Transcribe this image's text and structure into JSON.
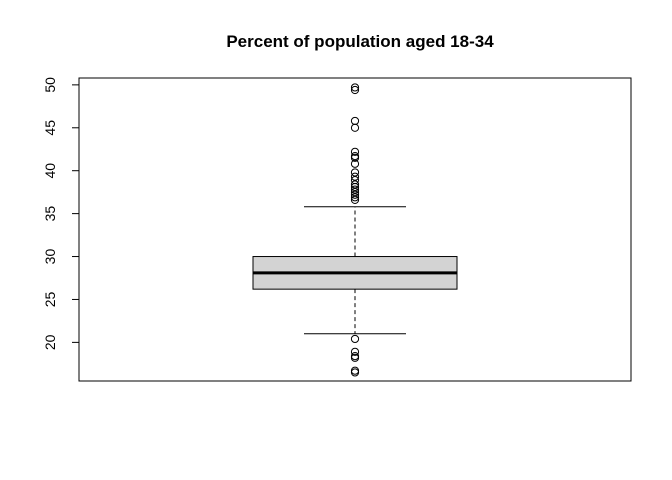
{
  "chart_data": {
    "type": "boxplot",
    "title": "Percent of population aged 18-34",
    "xlabel": "",
    "ylabel": "",
    "ylim": [
      15.5,
      50.8
    ],
    "y_ticks": [
      "20",
      "25",
      "30",
      "35",
      "40",
      "45",
      "50"
    ],
    "grid": false,
    "legend": "none",
    "box_fill": "#d3d3d3",
    "stats": {
      "whisker_low": 21.0,
      "q1": 26.2,
      "median": 28.1,
      "q3": 30.0,
      "whisker_high": 35.8
    },
    "outliers": [
      16.5,
      16.7,
      18.2,
      18.4,
      18.9,
      20.4,
      36.6,
      36.9,
      37.2,
      37.5,
      37.8,
      38.1,
      38.4,
      38.9,
      39.3,
      39.8,
      40.8,
      41.5,
      41.7,
      42.2,
      45.0,
      45.8,
      49.4,
      49.7
    ]
  }
}
